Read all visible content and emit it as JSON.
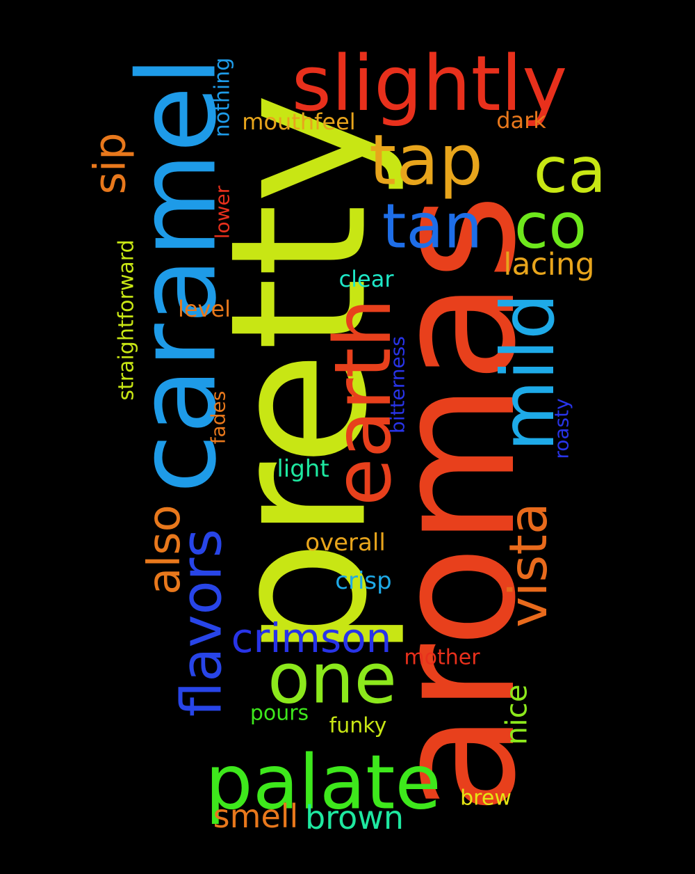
{
  "background": "#000000",
  "words": [
    {
      "text": "aromas",
      "color": "#E8401C",
      "orientation": "vertical"
    },
    {
      "text": "pretty",
      "color": "#C8E614",
      "orientation": "vertical"
    },
    {
      "text": "caramel",
      "color": "#1E9BE8",
      "orientation": "vertical"
    },
    {
      "text": "slightly",
      "color": "#E8301C",
      "orientation": "horizontal"
    },
    {
      "text": "earth",
      "color": "#E8401C",
      "orientation": "vertical"
    },
    {
      "text": "palate",
      "color": "#3EE81C",
      "orientation": "horizontal"
    },
    {
      "text": "tap",
      "color": "#E8A51C",
      "orientation": "horizontal"
    },
    {
      "text": "mild",
      "color": "#1EAAE8",
      "orientation": "vertical"
    },
    {
      "text": "one",
      "color": "#8CE81C",
      "orientation": "horizontal"
    },
    {
      "text": "ca",
      "color": "#C8E614",
      "orientation": "horizontal"
    },
    {
      "text": "co",
      "color": "#6EE81C",
      "orientation": "horizontal"
    },
    {
      "text": "tan",
      "color": "#1E6EE8",
      "orientation": "horizontal"
    },
    {
      "text": "flavors",
      "color": "#2845E8",
      "orientation": "vertical"
    },
    {
      "text": "vista",
      "color": "#E86A1C",
      "orientation": "vertical"
    },
    {
      "text": "also",
      "color": "#E8781C",
      "orientation": "vertical"
    },
    {
      "text": "sip",
      "color": "#E8781C",
      "orientation": "vertical"
    },
    {
      "text": "crimson",
      "color": "#2834E8",
      "orientation": "horizontal"
    },
    {
      "text": "lacing",
      "color": "#E8A51C",
      "orientation": "horizontal"
    },
    {
      "text": "brown",
      "color": "#1EE8A0",
      "orientation": "horizontal"
    },
    {
      "text": "smell",
      "color": "#E8781C",
      "orientation": "horizontal"
    },
    {
      "text": "nice",
      "color": "#8CE81C",
      "orientation": "vertical"
    },
    {
      "text": "overall",
      "color": "#E8A51C",
      "orientation": "horizontal"
    },
    {
      "text": "crisp",
      "color": "#1EAAE8",
      "orientation": "horizontal"
    },
    {
      "text": "light",
      "color": "#1EE8A0",
      "orientation": "horizontal"
    },
    {
      "text": "clear",
      "color": "#1EE8C8",
      "orientation": "horizontal"
    },
    {
      "text": "mother",
      "color": "#E8301C",
      "orientation": "horizontal"
    },
    {
      "text": "pours",
      "color": "#3EE81C",
      "orientation": "horizontal"
    },
    {
      "text": "funky",
      "color": "#C8E614",
      "orientation": "horizontal"
    },
    {
      "text": "mouthfeel",
      "color": "#E8A51C",
      "orientation": "horizontal"
    },
    {
      "text": "dark",
      "color": "#E8781C",
      "orientation": "horizontal"
    },
    {
      "text": "level",
      "color": "#E8781C",
      "orientation": "horizontal"
    },
    {
      "text": "brew",
      "color": "#E6E614",
      "orientation": "horizontal"
    },
    {
      "text": "nothing",
      "color": "#1E9BE8",
      "orientation": "vertical"
    },
    {
      "text": "lower",
      "color": "#E8301C",
      "orientation": "vertical"
    },
    {
      "text": "straightforward",
      "color": "#C8E614",
      "orientation": "vertical"
    },
    {
      "text": "fades",
      "color": "#E8781C",
      "orientation": "vertical"
    },
    {
      "text": "bitterness",
      "color": "#2834E8",
      "orientation": "vertical"
    },
    {
      "text": "roasty",
      "color": "#2834E8",
      "orientation": "vertical"
    }
  ]
}
